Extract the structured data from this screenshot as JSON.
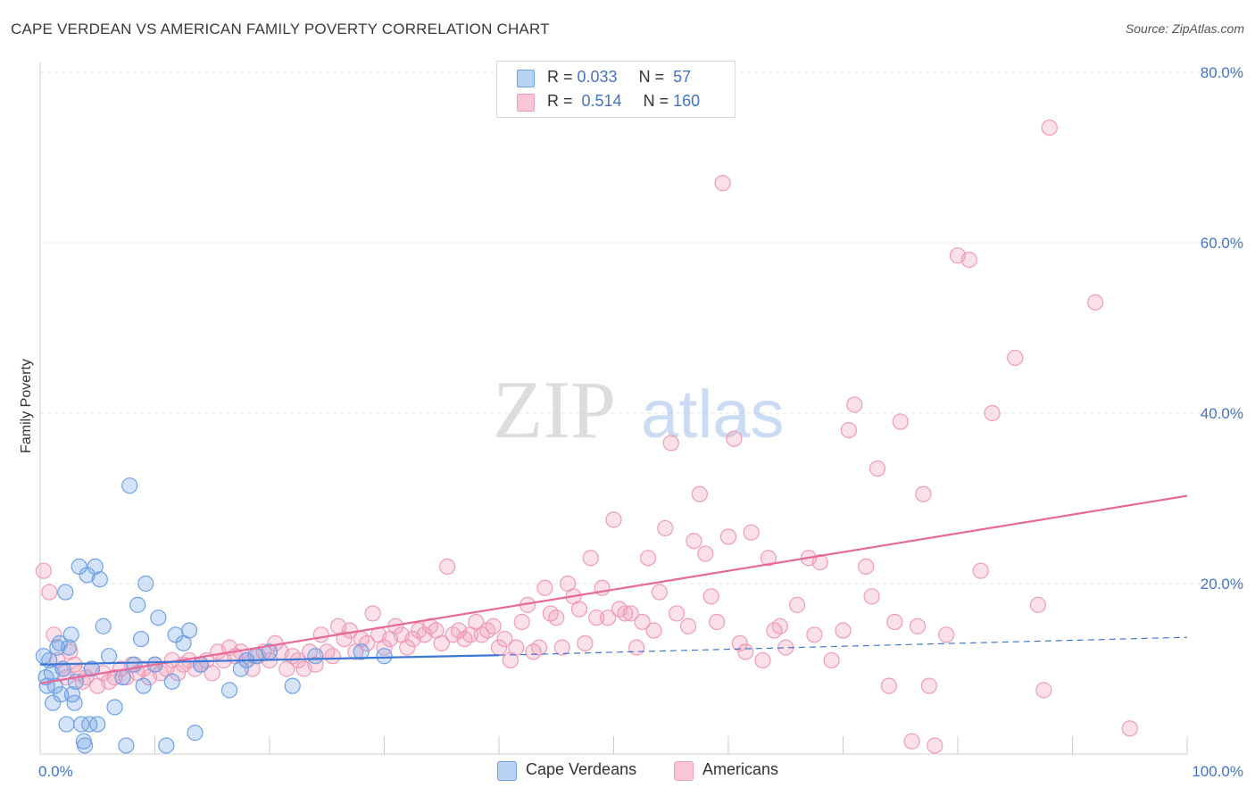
{
  "title": "CAPE VERDEAN VS AMERICAN FAMILY POVERTY CORRELATION CHART",
  "source": "Source: ZipAtlas.com",
  "watermark": {
    "zip": "ZIP",
    "atlas": "atlas"
  },
  "legend": {
    "rows": [
      {
        "r_label": "R = ",
        "r_value": "0.033",
        "n_label": "N = ",
        "n_value": " 57"
      },
      {
        "r_label": "R = ",
        "r_value": " 0.514",
        "n_label": "N = ",
        "n_value": "160"
      }
    ]
  },
  "bottom_legend": {
    "cape": "Cape Verdeans",
    "american": "Americans"
  },
  "chart_data": {
    "type": "scatter",
    "ylabel": "Family Poverty",
    "xlim": [
      0,
      100
    ],
    "ylim": [
      0,
      85
    ],
    "x_tick_labels": [
      "0.0%",
      "100.0%"
    ],
    "y_ticks": [
      20,
      40,
      60,
      80
    ],
    "y_tick_labels": [
      "20.0%",
      "40.0%",
      "60.0%",
      "80.0%"
    ],
    "grid": true,
    "legend_position": "top-center",
    "colors": {
      "cape": "#6fa1e6",
      "cape_line": "#3a78d4",
      "american": "#f09ab6",
      "american_line": "#e8689a",
      "tick_text": "#4472c4"
    },
    "series": [
      {
        "name": "Cape Verdeans",
        "trend_solid": [
          [
            0,
            10.5
          ],
          [
            40,
            11.6
          ]
        ],
        "trend_dashed": [
          [
            40,
            11.6
          ],
          [
            100,
            13.7
          ]
        ],
        "points": [
          [
            0.3,
            11.5
          ],
          [
            0.5,
            9
          ],
          [
            0.6,
            8
          ],
          [
            0.8,
            11
          ],
          [
            1,
            9.5
          ],
          [
            1.1,
            6
          ],
          [
            1.3,
            8
          ],
          [
            1.5,
            12.5
          ],
          [
            1.7,
            13
          ],
          [
            1.8,
            7
          ],
          [
            2,
            10
          ],
          [
            2.2,
            19
          ],
          [
            2.3,
            3.5
          ],
          [
            2.5,
            12.5
          ],
          [
            2.7,
            14
          ],
          [
            2.8,
            7
          ],
          [
            3,
            6
          ],
          [
            3.1,
            8.5
          ],
          [
            3.4,
            22
          ],
          [
            3.6,
            3.5
          ],
          [
            3.8,
            1.5
          ],
          [
            3.9,
            1
          ],
          [
            4.1,
            21
          ],
          [
            4.3,
            3.5
          ],
          [
            4.5,
            10
          ],
          [
            4.8,
            22
          ],
          [
            5,
            3.5
          ],
          [
            5.2,
            20.5
          ],
          [
            5.5,
            15
          ],
          [
            6,
            11.5
          ],
          [
            6.5,
            5.5
          ],
          [
            7.2,
            9
          ],
          [
            7.5,
            1
          ],
          [
            7.8,
            31.5
          ],
          [
            8.2,
            10.5
          ],
          [
            8.5,
            17.5
          ],
          [
            8.8,
            13.5
          ],
          [
            9,
            8
          ],
          [
            9.2,
            20
          ],
          [
            10,
            10.5
          ],
          [
            10.3,
            16
          ],
          [
            11,
            1
          ],
          [
            11.5,
            8.5
          ],
          [
            11.8,
            14
          ],
          [
            12.5,
            13
          ],
          [
            13,
            14.5
          ],
          [
            13.5,
            2.5
          ],
          [
            14,
            10.5
          ],
          [
            16.5,
            7.5
          ],
          [
            17.5,
            10
          ],
          [
            18,
            11
          ],
          [
            18.8,
            11.5
          ],
          [
            20,
            12
          ],
          [
            22,
            8
          ],
          [
            24,
            11.5
          ],
          [
            28,
            12
          ],
          [
            30,
            11.5
          ]
        ]
      },
      {
        "name": "Americans",
        "trend_solid": [
          [
            0,
            8.3
          ],
          [
            100,
            30.3
          ]
        ],
        "points": [
          [
            0.3,
            21.5
          ],
          [
            0.8,
            19
          ],
          [
            1.2,
            14
          ],
          [
            1.5,
            11
          ],
          [
            2,
            10
          ],
          [
            2.3,
            9
          ],
          [
            2.6,
            12
          ],
          [
            3,
            10.5
          ],
          [
            3.3,
            9.5
          ],
          [
            3.7,
            8.5
          ],
          [
            4,
            9
          ],
          [
            4.5,
            10
          ],
          [
            5,
            8
          ],
          [
            5.5,
            9.5
          ],
          [
            6,
            8.5
          ],
          [
            6.5,
            9
          ],
          [
            7,
            10
          ],
          [
            7.5,
            9
          ],
          [
            8,
            10.5
          ],
          [
            8.5,
            9.5
          ],
          [
            9,
            10
          ],
          [
            9.5,
            9
          ],
          [
            10,
            10.5
          ],
          [
            10.5,
            9.5
          ],
          [
            11,
            10
          ],
          [
            11.5,
            11
          ],
          [
            12,
            9.5
          ],
          [
            12.5,
            10.5
          ],
          [
            13,
            11
          ],
          [
            13.5,
            10
          ],
          [
            14,
            10.5
          ],
          [
            14.5,
            11
          ],
          [
            15,
            9.5
          ],
          [
            15.5,
            12
          ],
          [
            16,
            11
          ],
          [
            16.5,
            12.5
          ],
          [
            17,
            11.5
          ],
          [
            17.5,
            12
          ],
          [
            18,
            11
          ],
          [
            18.5,
            10
          ],
          [
            19,
            11.5
          ],
          [
            19.5,
            12
          ],
          [
            20,
            11
          ],
          [
            20.5,
            13
          ],
          [
            21,
            12
          ],
          [
            21.5,
            10
          ],
          [
            22,
            11.5
          ],
          [
            22.5,
            11
          ],
          [
            23,
            10
          ],
          [
            23.5,
            12
          ],
          [
            24,
            10.5
          ],
          [
            24.5,
            14
          ],
          [
            25,
            12
          ],
          [
            25.5,
            11.5
          ],
          [
            26,
            15
          ],
          [
            26.5,
            13.5
          ],
          [
            27,
            14.5
          ],
          [
            27.5,
            12
          ],
          [
            28,
            13.5
          ],
          [
            28.5,
            13
          ],
          [
            29,
            16.5
          ],
          [
            29.5,
            14
          ],
          [
            30,
            12.5
          ],
          [
            30.5,
            13.5
          ],
          [
            31,
            15
          ],
          [
            31.5,
            14
          ],
          [
            32,
            12.5
          ],
          [
            32.5,
            13.5
          ],
          [
            33,
            14.5
          ],
          [
            33.5,
            14
          ],
          [
            34,
            15
          ],
          [
            34.5,
            14.5
          ],
          [
            35,
            13
          ],
          [
            35.5,
            22
          ],
          [
            36,
            14
          ],
          [
            36.5,
            14.5
          ],
          [
            37,
            13.5
          ],
          [
            37.5,
            14
          ],
          [
            38,
            15.5
          ],
          [
            38.5,
            14
          ],
          [
            39,
            14.5
          ],
          [
            39.5,
            15
          ],
          [
            40,
            12.5
          ],
          [
            40.5,
            13.5
          ],
          [
            41,
            11
          ],
          [
            41.5,
            12.5
          ],
          [
            42,
            15.5
          ],
          [
            42.5,
            17.5
          ],
          [
            43,
            12
          ],
          [
            43.5,
            12.5
          ],
          [
            44,
            19.5
          ],
          [
            44.5,
            16.5
          ],
          [
            45,
            16
          ],
          [
            45.5,
            12.5
          ],
          [
            46,
            20
          ],
          [
            46.5,
            18.5
          ],
          [
            47,
            17
          ],
          [
            47.5,
            13
          ],
          [
            48,
            23
          ],
          [
            48.5,
            16
          ],
          [
            49,
            19.5
          ],
          [
            49.5,
            16
          ],
          [
            50,
            27.5
          ],
          [
            50.5,
            17
          ],
          [
            51,
            16.5
          ],
          [
            51.5,
            16.5
          ],
          [
            52,
            12.5
          ],
          [
            52.5,
            15.5
          ],
          [
            53,
            23
          ],
          [
            53.5,
            14.5
          ],
          [
            54,
            19
          ],
          [
            54.5,
            26.5
          ],
          [
            55,
            36.5
          ],
          [
            55.5,
            16.5
          ],
          [
            56.5,
            15
          ],
          [
            57,
            25
          ],
          [
            57.5,
            30.5
          ],
          [
            58,
            23.5
          ],
          [
            58.5,
            18.5
          ],
          [
            59,
            15.5
          ],
          [
            59.5,
            67
          ],
          [
            60,
            25.5
          ],
          [
            60.5,
            37
          ],
          [
            61,
            13
          ],
          [
            61.5,
            12
          ],
          [
            62,
            26
          ],
          [
            63,
            11
          ],
          [
            63.5,
            23
          ],
          [
            64,
            14.5
          ],
          [
            64.5,
            15
          ],
          [
            65,
            12.5
          ],
          [
            66,
            17.5
          ],
          [
            67,
            23
          ],
          [
            67.5,
            14
          ],
          [
            68,
            22.5
          ],
          [
            69,
            11
          ],
          [
            70,
            14.5
          ],
          [
            70.5,
            38
          ],
          [
            71,
            41
          ],
          [
            72,
            22
          ],
          [
            72.5,
            18.5
          ],
          [
            73,
            33.5
          ],
          [
            74,
            8
          ],
          [
            74.5,
            15.5
          ],
          [
            75,
            39
          ],
          [
            76,
            1.5
          ],
          [
            76.5,
            15
          ],
          [
            77,
            30.5
          ],
          [
            77.5,
            8
          ],
          [
            78,
            1
          ],
          [
            79,
            14
          ],
          [
            80,
            58.5
          ],
          [
            81,
            58
          ],
          [
            82,
            21.5
          ],
          [
            83,
            40
          ],
          [
            85,
            46.5
          ],
          [
            87,
            17.5
          ],
          [
            87.5,
            7.5
          ],
          [
            88,
            73.5
          ],
          [
            92,
            53
          ],
          [
            95,
            3
          ]
        ]
      }
    ]
  }
}
